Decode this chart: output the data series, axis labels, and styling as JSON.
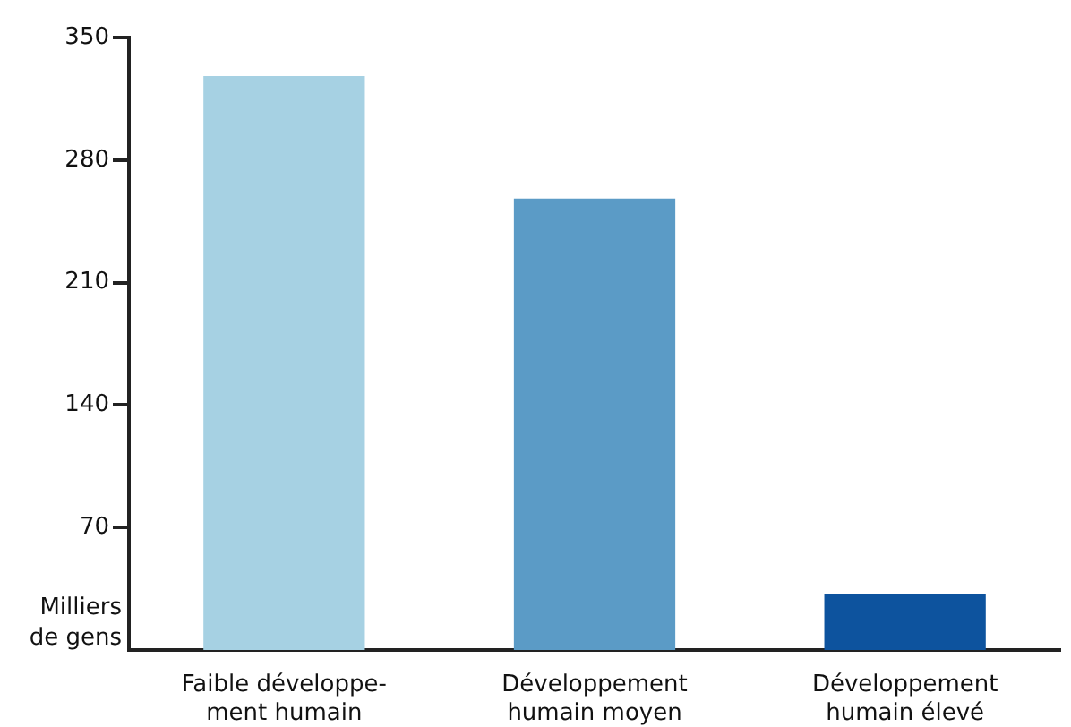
{
  "chart_data": {
    "type": "bar",
    "ylabel": "Milliers\nde gens",
    "categories": [
      "Faible développe-\nment humain",
      "Développement\nhumain moyen",
      "Développement\nhumain élevé"
    ],
    "values": [
      328,
      258,
      32
    ],
    "colors": [
      "#a6d1e3",
      "#5b9bc6",
      "#0d539e"
    ],
    "ylim": [
      0,
      350
    ],
    "yticks": [
      70,
      140,
      210,
      280,
      350
    ],
    "grid": false,
    "legend": false
  }
}
